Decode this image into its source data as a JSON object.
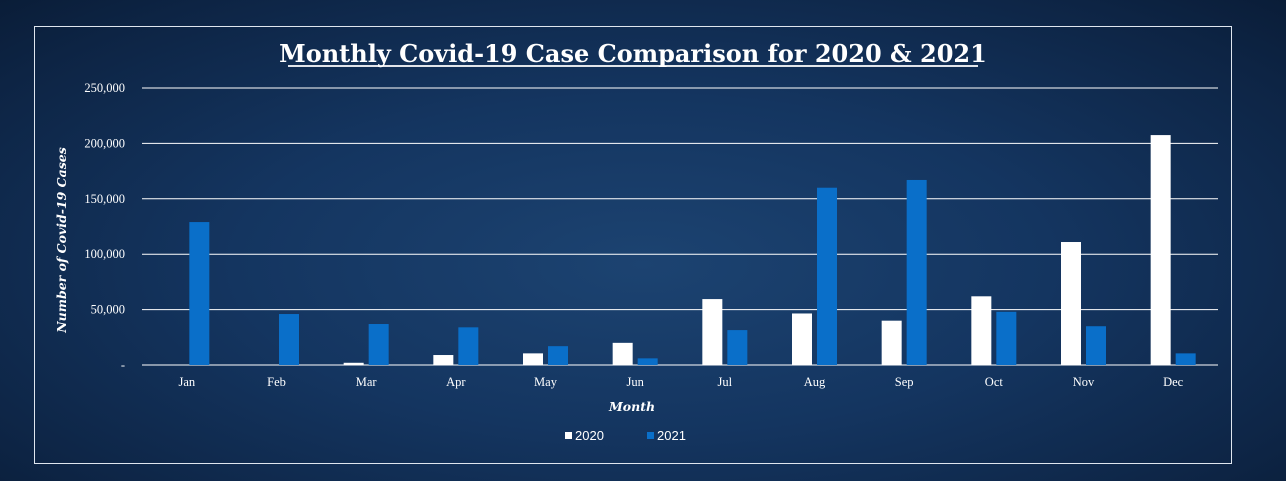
{
  "chart_data": {
    "type": "bar",
    "title": "Monthly Covid-19 Case Comparison for 2020 & 2021",
    "xlabel": "Month",
    "ylabel": "Number of Covid-19 Cases",
    "categories": [
      "Jan",
      "Feb",
      "Mar",
      "Apr",
      "May",
      "Jun",
      "Jul",
      "Aug",
      "Sep",
      "Oct",
      "Nov",
      "Dec"
    ],
    "ylim": [
      0,
      250000
    ],
    "yticks": [
      0,
      50000,
      100000,
      150000,
      200000,
      250000
    ],
    "ytick_labels": [
      "-",
      "50,000",
      "100,000",
      "150,000",
      "200,000",
      "250,000"
    ],
    "grid": true,
    "legend_position": "bottom",
    "series": [
      {
        "name": "2020",
        "color": "#ffffff",
        "values": [
          0,
          0,
          2000,
          9000,
          10500,
          20000,
          59500,
          46500,
          40000,
          62000,
          111000,
          207500
        ]
      },
      {
        "name": "2021",
        "color": "#0a6fc9",
        "values": [
          129000,
          46000,
          37000,
          34000,
          17000,
          6000,
          31500,
          160000,
          167000,
          48000,
          35000,
          10500
        ]
      }
    ]
  }
}
